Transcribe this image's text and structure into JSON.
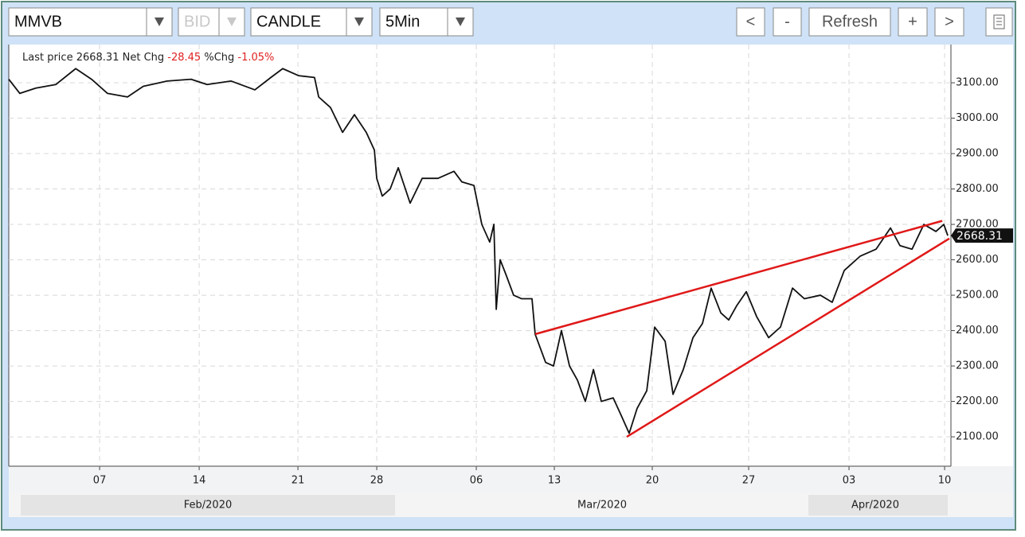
{
  "toolbar": {
    "symbol": "MMVB",
    "side": "BID",
    "style": "CANDLE",
    "interval": "5Min",
    "buttons": [
      "<",
      "-",
      "Refresh",
      "+",
      ">"
    ]
  },
  "chart_data": {
    "type": "line",
    "info": {
      "last_price_label": "Last price",
      "net_chg_label": "Net Chg",
      "net_chg": "-28.45",
      "pct_chg_label": "%Chg",
      "pct_chg": "-1.05%"
    },
    "last_price": 2668.31,
    "series": [
      {
        "name": "MMVB",
        "color": "#111111",
        "x": [
          0,
          0.56,
          1.37,
          2.38,
          3.39,
          4.19,
          5.0,
          6.01,
          6.81,
          8.02,
          9.23,
          10.04,
          11.25,
          12.46,
          13.27,
          13.87,
          14.68,
          15.48,
          15.69,
          16.29,
          16.9,
          17.5,
          18.1,
          18.51,
          18.63,
          18.91,
          19.31,
          19.72,
          20.32,
          20.93,
          21.73,
          22.54,
          22.94,
          23.55,
          23.95,
          24.35,
          24.56,
          24.68,
          24.88,
          25.16,
          25.56,
          25.97,
          26.49,
          26.65,
          27.18,
          27.58,
          27.98,
          28.39,
          28.79,
          29.19,
          29.6,
          30.0,
          30.6,
          31.01,
          31.41,
          31.81,
          32.3,
          32.7,
          33.23,
          33.63,
          34.15,
          34.64,
          35.12,
          35.56,
          36.05,
          36.45,
          36.85,
          37.34,
          37.86,
          38.47,
          39.07,
          39.68,
          40.28,
          41.09,
          41.69,
          42.3,
          43.1,
          43.91,
          44.64,
          45.12,
          45.73,
          46.33,
          46.94,
          47.34,
          47.54
        ],
        "values": [
          3110,
          3070,
          3085,
          3095,
          3140,
          3110,
          3070,
          3060,
          3090,
          3105,
          3110,
          3095,
          3105,
          3080,
          3115,
          3140,
          3120,
          3115,
          3060,
          3030,
          2960,
          3010,
          2960,
          2910,
          2830,
          2780,
          2800,
          2860,
          2760,
          2830,
          2830,
          2850,
          2820,
          2810,
          2700,
          2650,
          2700,
          2460,
          2600,
          2560,
          2500,
          2490,
          2490,
          2390,
          2310,
          2300,
          2400,
          2300,
          2260,
          2200,
          2290,
          2200,
          2210,
          2160,
          2110,
          2180,
          2230,
          2410,
          2370,
          2220,
          2290,
          2380,
          2420,
          2520,
          2450,
          2430,
          2470,
          2510,
          2440,
          2380,
          2410,
          2520,
          2490,
          2500,
          2480,
          2570,
          2610,
          2630,
          2690,
          2640,
          2630,
          2700,
          2680,
          2700,
          2668.31
        ]
      }
    ],
    "trendlines": [
      {
        "color": "#e01818",
        "x": [
          26.65,
          47.26
        ],
        "values": [
          2390,
          2710
        ]
      },
      {
        "color": "#e01818",
        "x": [
          31.29,
          47.62
        ],
        "values": [
          2100,
          2660
        ]
      }
    ],
    "xlim": [
      0,
      47.7
    ],
    "xticks": [
      {
        "value": 4.6,
        "label": "07"
      },
      {
        "value": 9.64,
        "label": "14"
      },
      {
        "value": 14.64,
        "label": "21"
      },
      {
        "value": 18.63,
        "label": "28"
      },
      {
        "value": 23.67,
        "label": "06"
      },
      {
        "value": 27.62,
        "label": "13"
      },
      {
        "value": 32.58,
        "label": "20"
      },
      {
        "value": 37.46,
        "label": "27"
      },
      {
        "value": 42.54,
        "label": "03"
      },
      {
        "value": 47.38,
        "label": "10"
      }
    ],
    "months": [
      "Feb/2020",
      "Mar/2020",
      "Apr/2020"
    ],
    "ylim": [
      2017,
      3208
    ],
    "yticks": [
      {
        "value": 2100,
        "label": "2100.00"
      },
      {
        "value": 2200,
        "label": "2200.00"
      },
      {
        "value": 2300,
        "label": "2300.00"
      },
      {
        "value": 2400,
        "label": "2400.00"
      },
      {
        "value": 2500,
        "label": "2500.00"
      },
      {
        "value": 2600,
        "label": "2600.00"
      },
      {
        "value": 2700,
        "label": "2700.00"
      },
      {
        "value": 2800,
        "label": "2800.00"
      },
      {
        "value": 2900,
        "label": "2900.00"
      },
      {
        "value": 3000,
        "label": "3000.00"
      },
      {
        "value": 3100,
        "label": "3100.00"
      }
    ],
    "grid": true
  }
}
